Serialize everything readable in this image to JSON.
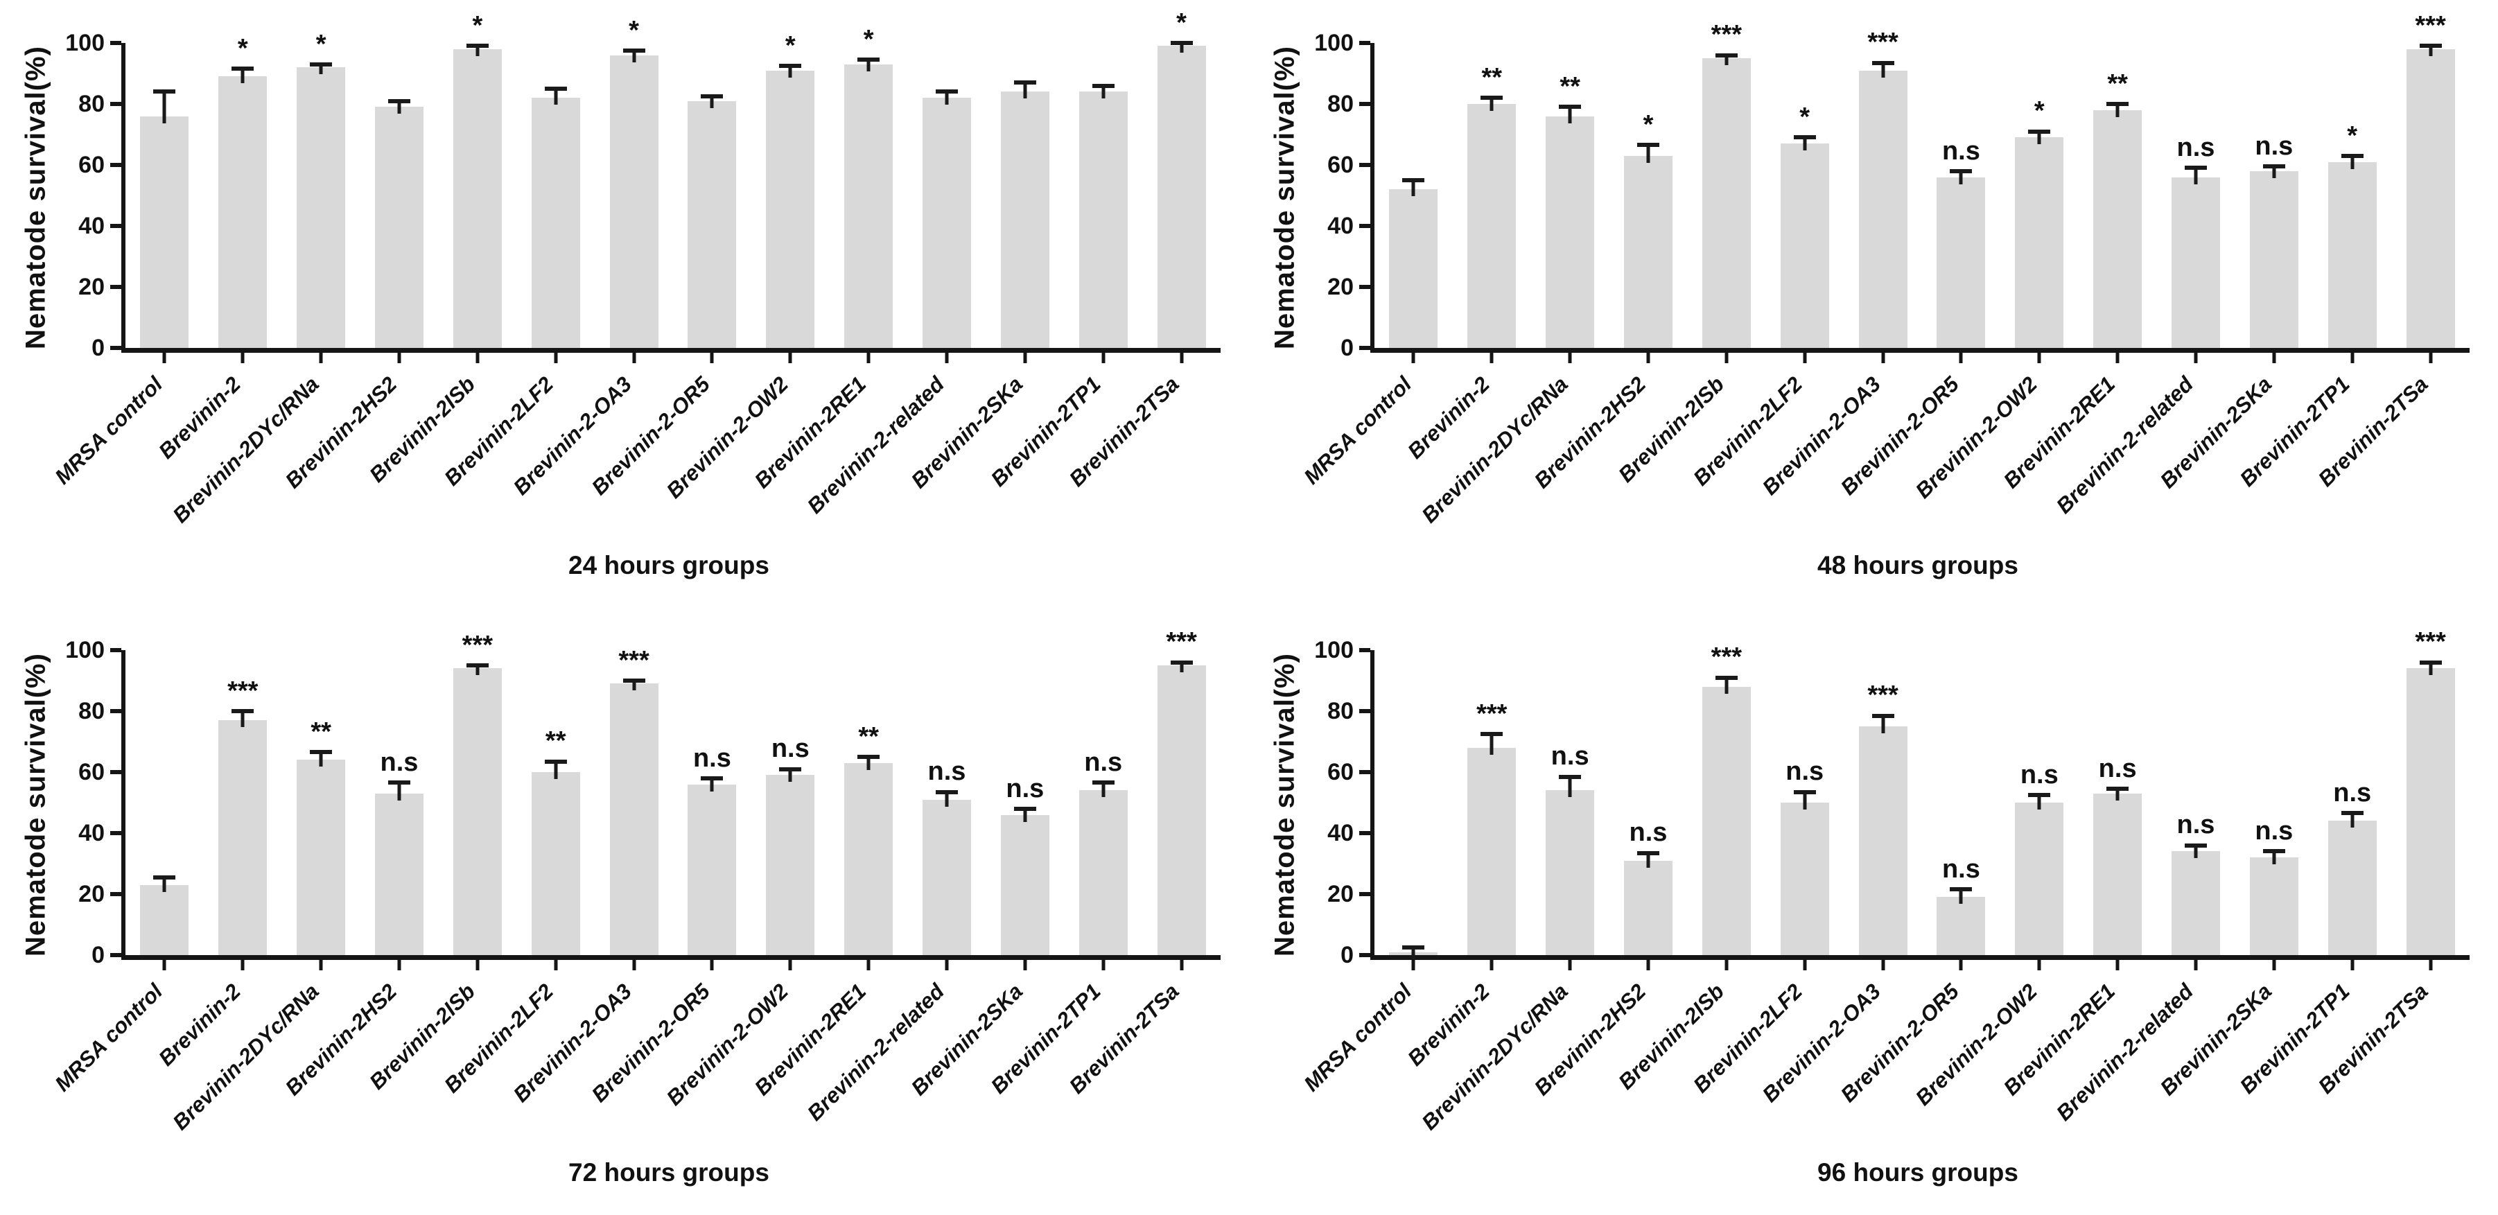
{
  "figure_title": "Nematode survival bar charts",
  "colors": {
    "bar": "#d9d9d9",
    "axis": "#151515",
    "error_bar": "#1a1a1a",
    "text": "#111111",
    "background": "#ffffff"
  },
  "chart_data": [
    {
      "type": "bar",
      "title": "24 hours groups",
      "ylabel": "Nematode survival(%)",
      "ylim": [
        0,
        100
      ],
      "yticks": [
        0,
        20,
        40,
        60,
        80,
        100
      ],
      "legend": "none",
      "grid": "off",
      "categories": [
        "MRSA control",
        "Brevinin-2",
        "Brevinin-2DYc/RNa",
        "Brevinin-2HS2",
        "Brevinin-2ISb",
        "Brevinin-2LF2",
        "Brevinin-2-OA3",
        "Brevinin-2-OR5",
        "Brevinin-2-OW2",
        "Brevinin-2RE1",
        "Brevinin-2-related",
        "Brevinin-2SKa",
        "Brevinin-2TP1",
        "Brevinin-2TSa"
      ],
      "values": [
        76,
        89,
        92,
        79,
        98,
        82,
        96,
        81,
        91,
        93,
        82,
        84,
        84,
        99
      ],
      "errors": [
        8,
        2.5,
        1,
        2,
        1,
        3,
        1.5,
        1.5,
        1.5,
        1.5,
        2,
        3,
        2,
        1
      ],
      "significance": [
        "",
        "*",
        "*",
        "",
        "*",
        "",
        "*",
        "",
        "*",
        "*",
        "",
        "",
        "",
        "*"
      ]
    },
    {
      "type": "bar",
      "title": "48 hours groups",
      "ylabel": "Nematode survival(%)",
      "ylim": [
        0,
        100
      ],
      "yticks": [
        0,
        20,
        40,
        60,
        80,
        100
      ],
      "legend": "none",
      "grid": "off",
      "categories": [
        "MRSA control",
        "Brevinin-2",
        "Brevinin-2DYc/RNa",
        "Brevinin-2HS2",
        "Brevinin-2ISb",
        "Brevinin-2LF2",
        "Brevinin-2-OA3",
        "Brevinin-2-OR5",
        "Brevinin-2-OW2",
        "Brevinin-2RE1",
        "Brevinin-2-related",
        "Brevinin-2SKa",
        "Brevinin-2TP1",
        "Brevinin-2TSa"
      ],
      "values": [
        52,
        80,
        76,
        63,
        95,
        67,
        91,
        56,
        69,
        78,
        56,
        58,
        61,
        98
      ],
      "errors": [
        3,
        2,
        3,
        3.5,
        1,
        2,
        2.5,
        2,
        2,
        2,
        3,
        1.5,
        2,
        1
      ],
      "significance": [
        "",
        "**",
        "**",
        "*",
        "***",
        "*",
        "***",
        "n.s",
        "*",
        "**",
        "n.s",
        "n.s",
        "*",
        "***"
      ]
    },
    {
      "type": "bar",
      "title": "72 hours groups",
      "ylabel": "Nematode survival(%)",
      "ylim": [
        0,
        100
      ],
      "yticks": [
        0,
        20,
        40,
        60,
        80,
        100
      ],
      "legend": "none",
      "grid": "off",
      "categories": [
        "MRSA control",
        "Brevinin-2",
        "Brevinin-2DYc/RNa",
        "Brevinin-2HS2",
        "Brevinin-2ISb",
        "Brevinin-2LF2",
        "Brevinin-2-OA3",
        "Brevinin-2-OR5",
        "Brevinin-2-OW2",
        "Brevinin-2RE1",
        "Brevinin-2-related",
        "Brevinin-2SKa",
        "Brevinin-2TP1",
        "Brevinin-2TSa"
      ],
      "values": [
        23,
        77,
        64,
        53,
        94,
        60,
        89,
        56,
        59,
        63,
        51,
        46,
        54,
        95
      ],
      "errors": [
        2.5,
        3,
        2.5,
        3.5,
        1,
        3.5,
        1,
        2,
        2,
        2,
        2.5,
        2,
        2.5,
        1
      ],
      "significance": [
        "",
        "***",
        "**",
        "n.s",
        "***",
        "**",
        "***",
        "n.s",
        "n.s",
        "**",
        "n.s",
        "n.s",
        "n.s",
        "***"
      ]
    },
    {
      "type": "bar",
      "title": "96 hours groups",
      "ylabel": "Nematode survival(%)",
      "ylim": [
        0,
        100
      ],
      "yticks": [
        0,
        20,
        40,
        60,
        80,
        100
      ],
      "legend": "none",
      "grid": "off",
      "categories": [
        "MRSA control",
        "Brevinin-2",
        "Brevinin-2DYc/RNa",
        "Brevinin-2HS2",
        "Brevinin-2ISb",
        "Brevinin-2LF2",
        "Brevinin-2-OA3",
        "Brevinin-2-OR5",
        "Brevinin-2-OW2",
        "Brevinin-2RE1",
        "Brevinin-2-related",
        "Brevinin-2SKa",
        "Brevinin-2TP1",
        "Brevinin-2TSa"
      ],
      "values": [
        1,
        68,
        54,
        31,
        88,
        50,
        75,
        19,
        50,
        53,
        34,
        32,
        44,
        94
      ],
      "errors": [
        1.5,
        4.5,
        4.5,
        2.5,
        3,
        3.5,
        3.5,
        2.5,
        2.5,
        1.5,
        2,
        2,
        2.5,
        2
      ],
      "significance": [
        "",
        "***",
        "n.s",
        "n.s",
        "***",
        "n.s",
        "***",
        "n.s",
        "n.s",
        "n.s",
        "n.s",
        "n.s",
        "n.s",
        "***"
      ]
    }
  ]
}
